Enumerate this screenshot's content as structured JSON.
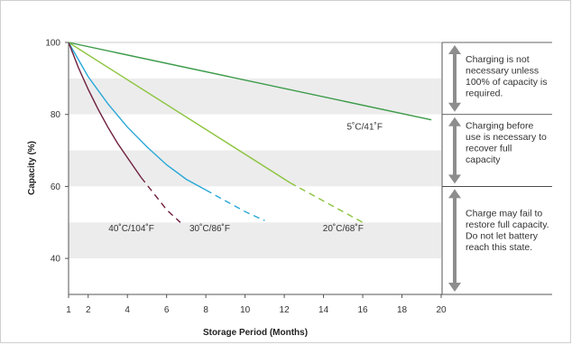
{
  "chart_data": {
    "type": "line",
    "title": "",
    "xlabel": "Storage Period (Months)",
    "ylabel": "Capacity (%)",
    "xlim": [
      1,
      20
    ],
    "ylim": [
      30,
      100
    ],
    "x_ticks": [
      1,
      2,
      4,
      6,
      8,
      10,
      12,
      14,
      16,
      18,
      20
    ],
    "y_ticks": [
      40,
      60,
      80,
      100
    ],
    "banding": "alternating light-gray horizontal bands",
    "series": [
      {
        "name": "5˚C/41˚F",
        "color": "#3a9a48",
        "dash_from_x": null,
        "x": [
          1,
          19.5
        ],
        "y": [
          100,
          78.5
        ]
      },
      {
        "name": "20˚C/68˚F",
        "color": "#8cc43f",
        "dash_from_x": 12.3,
        "x": [
          1,
          12.3,
          16
        ],
        "y": [
          100,
          61,
          50
        ]
      },
      {
        "name": "30˚C/86˚F",
        "color": "#29a8d8",
        "dash_from_x": 8,
        "x": [
          1,
          2,
          3,
          4,
          5,
          6,
          7,
          8,
          9,
          10,
          11
        ],
        "y": [
          100,
          90.5,
          83,
          76.5,
          71,
          66,
          62,
          59,
          56,
          53,
          50.5
        ]
      },
      {
        "name": "40˚C/104˚F",
        "color": "#6e1e3e",
        "dash_from_x": 4.7,
        "x": [
          1,
          1.5,
          2,
          2.5,
          3,
          3.5,
          4,
          4.7,
          5.5,
          6,
          6.7
        ],
        "y": [
          100,
          93,
          87,
          81.5,
          76.5,
          72,
          68,
          62.5,
          57,
          53.5,
          50
        ]
      }
    ],
    "series_labels": [
      {
        "text": "5˚C/41˚F",
        "x": 16.1,
        "y": 75.8
      },
      {
        "text": "20˚C/68˚F",
        "x": 15,
        "y": 47.6
      },
      {
        "text": "30˚C/86˚F",
        "x": 8.2,
        "y": 47.6
      },
      {
        "text": "40˚C/104˚F",
        "x": 4.2,
        "y": 47.6
      }
    ],
    "annotations": [
      {
        "range": [
          80,
          100
        ],
        "lines": [
          "Charging is not",
          "necessary unless",
          "100% of capacity is",
          "required."
        ]
      },
      {
        "range": [
          60,
          80
        ],
        "lines": [
          "Charging before",
          "use is necessary to",
          "recover full",
          "capacity"
        ]
      },
      {
        "range": [
          30,
          60
        ],
        "lines": [
          "Charge may fail to",
          "restore full capacity.",
          "Do not let battery",
          "reach this state."
        ]
      }
    ],
    "colors": {
      "band": "#ececec",
      "arrow": "#8d8d8d",
      "axis": "#555555"
    }
  }
}
